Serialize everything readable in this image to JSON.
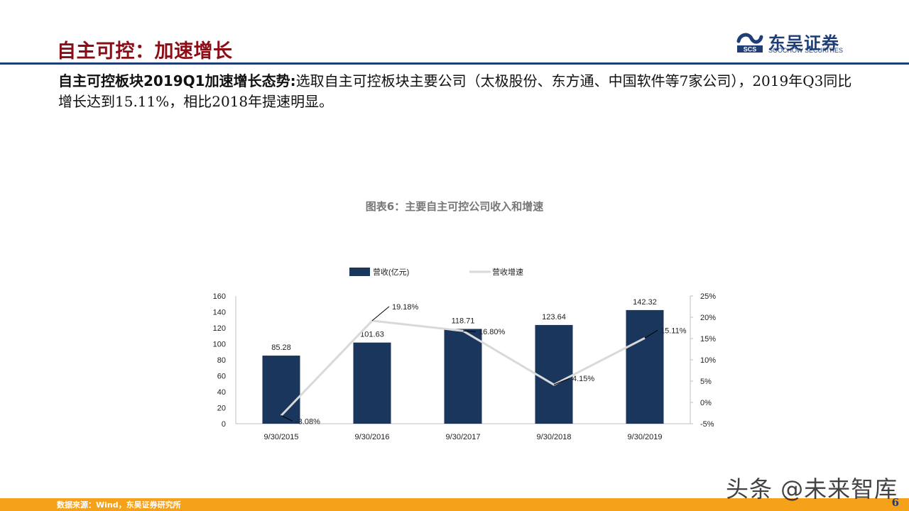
{
  "header": {
    "title": "自主可控：加速增长",
    "logo_cn": "东吴证券",
    "logo_en": "SOOCHOW SECURITIES",
    "brand_color": "#8b0d16",
    "accent_color": "#1f3e78"
  },
  "summary": {
    "lead": "自主可控板块2019Q1加速增长态势:",
    "text": "选取自主可控板块主要公司（太极股份、东方通、中国软件等7家公司），2019年Q3同比增长达到15.11%，相比2018年提速明显。"
  },
  "chart_data": {
    "type": "bar",
    "title": "图表6：主要自主可控公司收入和增速",
    "categories": [
      "9/30/2015",
      "9/30/2016",
      "9/30/2017",
      "9/30/2018",
      "9/30/2019"
    ],
    "series": [
      {
        "name": "营收(亿元)",
        "type": "bar",
        "axis": "left",
        "color": "#1b365d",
        "values": [
          85.28,
          101.63,
          118.71,
          123.64,
          142.32
        ],
        "labels": [
          "85.28",
          "101.63",
          "118.71",
          "123.64",
          "142.32"
        ]
      },
      {
        "name": "营收增速",
        "type": "line",
        "axis": "right",
        "color": "#d9d9d9",
        "values": [
          -3.08,
          19.18,
          16.8,
          4.15,
          15.11
        ],
        "labels": [
          "-3.08%",
          "19.18%",
          "16.80%",
          "4.15%",
          "15.11%"
        ]
      }
    ],
    "y_left": {
      "min": 0,
      "max": 160,
      "ticks": [
        "0",
        "20",
        "40",
        "60",
        "80",
        "100",
        "120",
        "140",
        "160"
      ]
    },
    "y_right": {
      "min": -5,
      "max": 25,
      "ticks": [
        "-5%",
        "0%",
        "5%",
        "10%",
        "15%",
        "20%",
        "25%"
      ]
    },
    "legend_position": "top",
    "grid": false
  },
  "footer": {
    "source": "数据来源：Wind，东吴证券研究所",
    "page": "6",
    "watermark": "头条 @未来智库"
  }
}
